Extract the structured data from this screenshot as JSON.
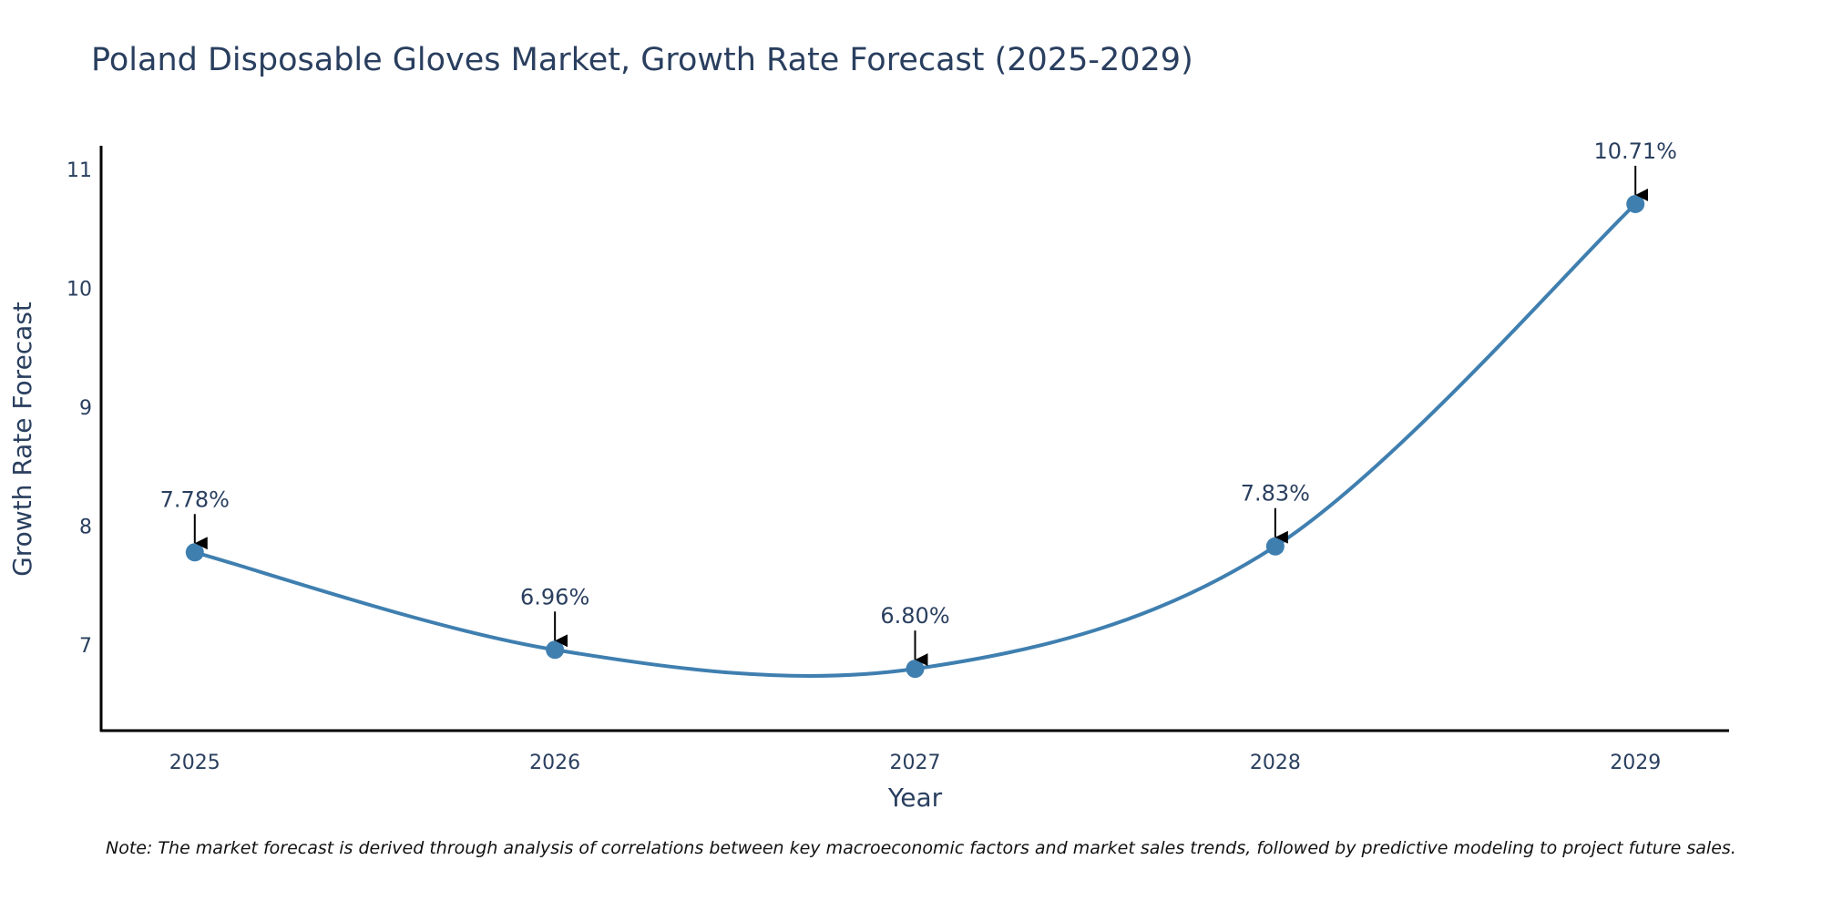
{
  "chart_data": {
    "type": "line",
    "title": "Poland Disposable Gloves Market, Growth Rate Forecast (2025-2029)",
    "xlabel": "Year",
    "ylabel": "Growth Rate Forecast",
    "x": [
      2025,
      2026,
      2027,
      2028,
      2029
    ],
    "x_tick_labels": [
      "2025",
      "2026",
      "2027",
      "2028",
      "2029"
    ],
    "values": [
      7.78,
      6.96,
      6.8,
      7.83,
      10.71
    ],
    "data_labels": [
      "7.78%",
      "6.96%",
      "6.80%",
      "7.83%",
      "10.71%"
    ],
    "y_ticks": [
      7,
      8,
      9,
      10,
      11
    ],
    "y_tick_labels": [
      "7",
      "8",
      "9",
      "10",
      "11"
    ],
    "ylim": [
      6.28,
      11.2
    ],
    "xlim": [
      2024.74,
      2029.26
    ],
    "grid": false,
    "line_shape": "spline",
    "series_color": "#3f7fb0",
    "annotation_arrow_color": "#000000",
    "axis_color": "#000000"
  },
  "note": "Note: The market forecast is derived through analysis of correlations between key macroeconomic factors and market sales trends, followed by predictive modeling to project future sales."
}
